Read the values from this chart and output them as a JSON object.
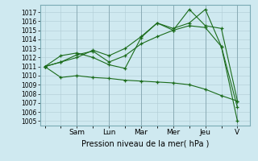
{
  "xlabel": "Pression niveau de la mer( hPa )",
  "ylim": [
    1004.5,
    1017.8
  ],
  "yticks": [
    1005,
    1006,
    1007,
    1008,
    1009,
    1010,
    1011,
    1012,
    1013,
    1014,
    1015,
    1016,
    1017
  ],
  "day_labels": [
    "Sam",
    "Lun",
    "Mar",
    "Mer",
    "Jeu",
    "V"
  ],
  "day_positions": [
    2,
    4,
    6,
    8,
    10,
    12
  ],
  "bg_color": "#cfe9f0",
  "grid_color": "#b0ccd4",
  "line_color": "#1a6b1a",
  "lines": [
    [
      1011.0,
      1009.8,
      1010.0,
      1009.8,
      1009.7,
      1009.5,
      1009.4,
      1009.3,
      1009.2,
      1009.0,
      1008.5,
      1007.8,
      1007.2
    ],
    [
      1011.0,
      1011.5,
      1012.0,
      1012.8,
      1012.2,
      1013.0,
      1014.3,
      1015.8,
      1015.2,
      1015.8,
      1017.3,
      1013.2,
      1005.0
    ],
    [
      1011.0,
      1011.5,
      1012.3,
      1012.7,
      1011.5,
      1012.2,
      1013.5,
      1014.3,
      1015.0,
      1017.3,
      1015.5,
      1015.2,
      1007.2
    ],
    [
      1011.0,
      1012.2,
      1012.5,
      1012.0,
      1011.2,
      1010.8,
      1014.2,
      1015.8,
      1015.0,
      1015.5,
      1015.3,
      1013.2,
      1006.5
    ]
  ],
  "x_count": 13,
  "x_start": 0,
  "x_end": 12,
  "xlim_left": -0.3,
  "xlim_right": 12.8
}
